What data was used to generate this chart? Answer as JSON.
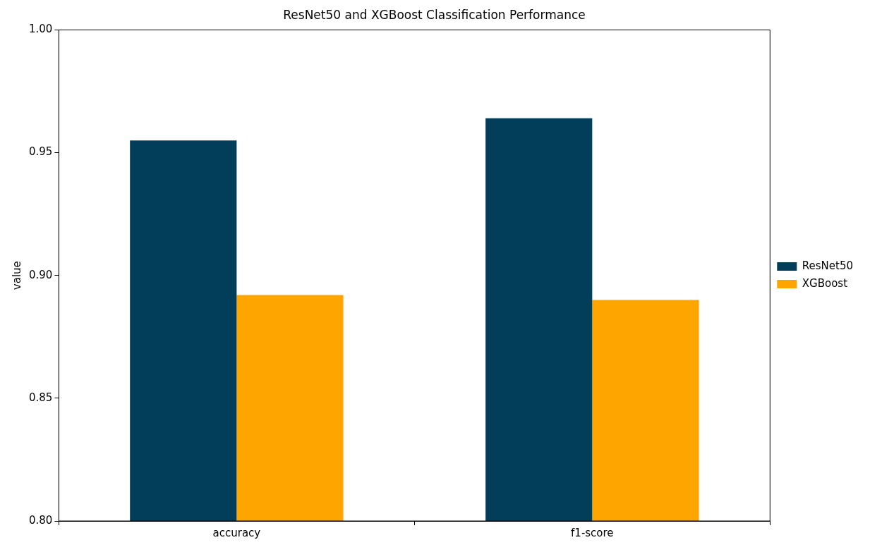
{
  "chart_data": {
    "type": "bar",
    "title": "ResNet50 and XGBoost Classification Performance",
    "ylabel": "value",
    "categories": [
      "accuracy",
      "f1-score"
    ],
    "series": [
      {
        "name": "ResNet50",
        "color": "#023e5a",
        "values": [
          0.955,
          0.964
        ]
      },
      {
        "name": "XGBoost",
        "color": "#ffa500",
        "values": [
          0.892,
          0.89
        ]
      }
    ],
    "ylim": [
      0.8,
      1.0
    ],
    "yticks": [
      {
        "value": 0.8,
        "label": "0.80"
      },
      {
        "value": 0.85,
        "label": "0.85"
      },
      {
        "value": 0.9,
        "label": "0.90"
      },
      {
        "value": 0.95,
        "label": "0.95"
      },
      {
        "value": 1.0,
        "label": "1.00"
      }
    ],
    "grid": false,
    "legend": "right"
  }
}
